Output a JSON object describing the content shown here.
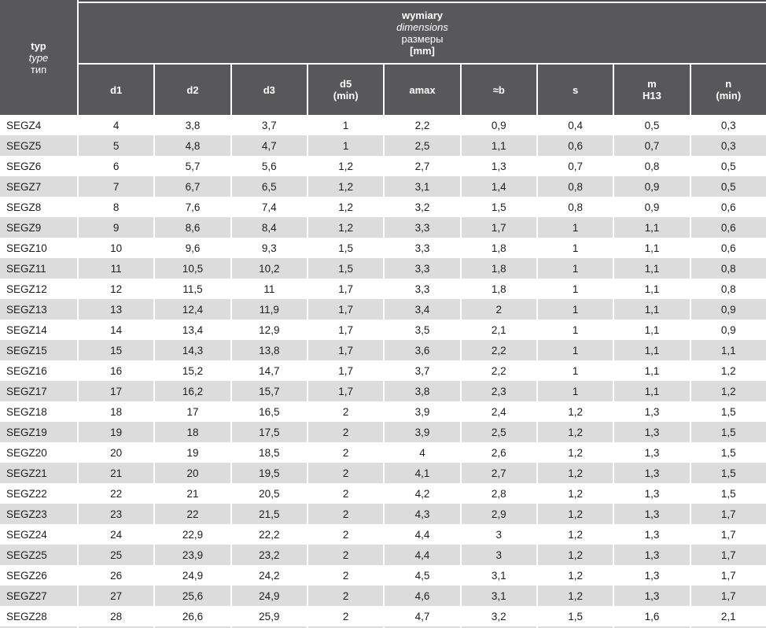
{
  "table": {
    "corner_header": {
      "line1": "typ",
      "line2": "type",
      "line3": "тип"
    },
    "group_header": {
      "line1": "wymiary",
      "line2": "dimensions",
      "line3": "размеры",
      "line4": "[mm]"
    },
    "columns": [
      "d1",
      "d2",
      "d3",
      "d5\n(min)",
      "amax",
      "≈b",
      "s",
      "m\nH13",
      "n\n(min)"
    ],
    "rows": [
      {
        "type": "SEGZ4",
        "values": [
          "4",
          "3,8",
          "3,7",
          "1",
          "2,2",
          "0,9",
          "0,4",
          "0,5",
          "0,3"
        ]
      },
      {
        "type": "SEGZ5",
        "values": [
          "5",
          "4,8",
          "4,7",
          "1",
          "2,5",
          "1,1",
          "0,6",
          "0,7",
          "0,3"
        ]
      },
      {
        "type": "SEGZ6",
        "values": [
          "6",
          "5,7",
          "5,6",
          "1,2",
          "2,7",
          "1,3",
          "0,7",
          "0,8",
          "0,5"
        ]
      },
      {
        "type": "SEGZ7",
        "values": [
          "7",
          "6,7",
          "6,5",
          "1,2",
          "3,1",
          "1,4",
          "0,8",
          "0,9",
          "0,5"
        ]
      },
      {
        "type": "SEGZ8",
        "values": [
          "8",
          "7,6",
          "7,4",
          "1,2",
          "3,2",
          "1,5",
          "0,8",
          "0,9",
          "0,6"
        ]
      },
      {
        "type": "SEGZ9",
        "values": [
          "9",
          "8,6",
          "8,4",
          "1,2",
          "3,3",
          "1,7",
          "1",
          "1,1",
          "0,6"
        ]
      },
      {
        "type": "SEGZ10",
        "values": [
          "10",
          "9,6",
          "9,3",
          "1,5",
          "3,3",
          "1,8",
          "1",
          "1,1",
          "0,6"
        ]
      },
      {
        "type": "SEGZ11",
        "values": [
          "11",
          "10,5",
          "10,2",
          "1,5",
          "3,3",
          "1,8",
          "1",
          "1,1",
          "0,8"
        ]
      },
      {
        "type": "SEGZ12",
        "values": [
          "12",
          "11,5",
          "11",
          "1,7",
          "3,3",
          "1,8",
          "1",
          "1,1",
          "0,8"
        ]
      },
      {
        "type": "SEGZ13",
        "values": [
          "13",
          "12,4",
          "11,9",
          "1,7",
          "3,4",
          "2",
          "1",
          "1,1",
          "0,9"
        ]
      },
      {
        "type": "SEGZ14",
        "values": [
          "14",
          "13,4",
          "12,9",
          "1,7",
          "3,5",
          "2,1",
          "1",
          "1,1",
          "0,9"
        ]
      },
      {
        "type": "SEGZ15",
        "values": [
          "15",
          "14,3",
          "13,8",
          "1,7",
          "3,6",
          "2,2",
          "1",
          "1,1",
          "1,1"
        ]
      },
      {
        "type": "SEGZ16",
        "values": [
          "16",
          "15,2",
          "14,7",
          "1,7",
          "3,7",
          "2,2",
          "1",
          "1,1",
          "1,2"
        ]
      },
      {
        "type": "SEGZ17",
        "values": [
          "17",
          "16,2",
          "15,7",
          "1,7",
          "3,8",
          "2,3",
          "1",
          "1,1",
          "1,2"
        ]
      },
      {
        "type": "SEGZ18",
        "values": [
          "18",
          "17",
          "16,5",
          "2",
          "3,9",
          "2,4",
          "1,2",
          "1,3",
          "1,5"
        ]
      },
      {
        "type": "SEGZ19",
        "values": [
          "19",
          "18",
          "17,5",
          "2",
          "3,9",
          "2,5",
          "1,2",
          "1,3",
          "1,5"
        ]
      },
      {
        "type": "SEGZ20",
        "values": [
          "20",
          "19",
          "18,5",
          "2",
          "4",
          "2,6",
          "1,2",
          "1,3",
          "1,5"
        ]
      },
      {
        "type": "SEGZ21",
        "values": [
          "21",
          "20",
          "19,5",
          "2",
          "4,1",
          "2,7",
          "1,2",
          "1,3",
          "1,5"
        ]
      },
      {
        "type": "SEGZ22",
        "values": [
          "22",
          "21",
          "20,5",
          "2",
          "4,2",
          "2,8",
          "1,2",
          "1,3",
          "1,5"
        ]
      },
      {
        "type": "SEGZ23",
        "values": [
          "23",
          "22",
          "21,5",
          "2",
          "4,3",
          "2,9",
          "1,2",
          "1,3",
          "1,7"
        ]
      },
      {
        "type": "SEGZ24",
        "values": [
          "24",
          "22,9",
          "22,2",
          "2",
          "4,4",
          "3",
          "1,2",
          "1,3",
          "1,7"
        ]
      },
      {
        "type": "SEGZ25",
        "values": [
          "25",
          "23,9",
          "23,2",
          "2",
          "4,4",
          "3",
          "1,2",
          "1,3",
          "1,7"
        ]
      },
      {
        "type": "SEGZ26",
        "values": [
          "26",
          "24,9",
          "24,2",
          "2",
          "4,5",
          "3,1",
          "1,2",
          "1,3",
          "1,7"
        ]
      },
      {
        "type": "SEGZ27",
        "values": [
          "27",
          "25,6",
          "24,9",
          "2",
          "4,6",
          "3,1",
          "1,2",
          "1,3",
          "1,7"
        ]
      },
      {
        "type": "SEGZ28",
        "values": [
          "28",
          "26,6",
          "25,9",
          "2",
          "4,7",
          "3,2",
          "1,5",
          "1,6",
          "2,1"
        ]
      }
    ]
  },
  "colors": {
    "header_bg": "#58585a",
    "row_alt_bg": "#dcdcdd",
    "row_bg": "#ffffff",
    "header_text": "#ffffff",
    "body_text": "#1d1d1f"
  }
}
